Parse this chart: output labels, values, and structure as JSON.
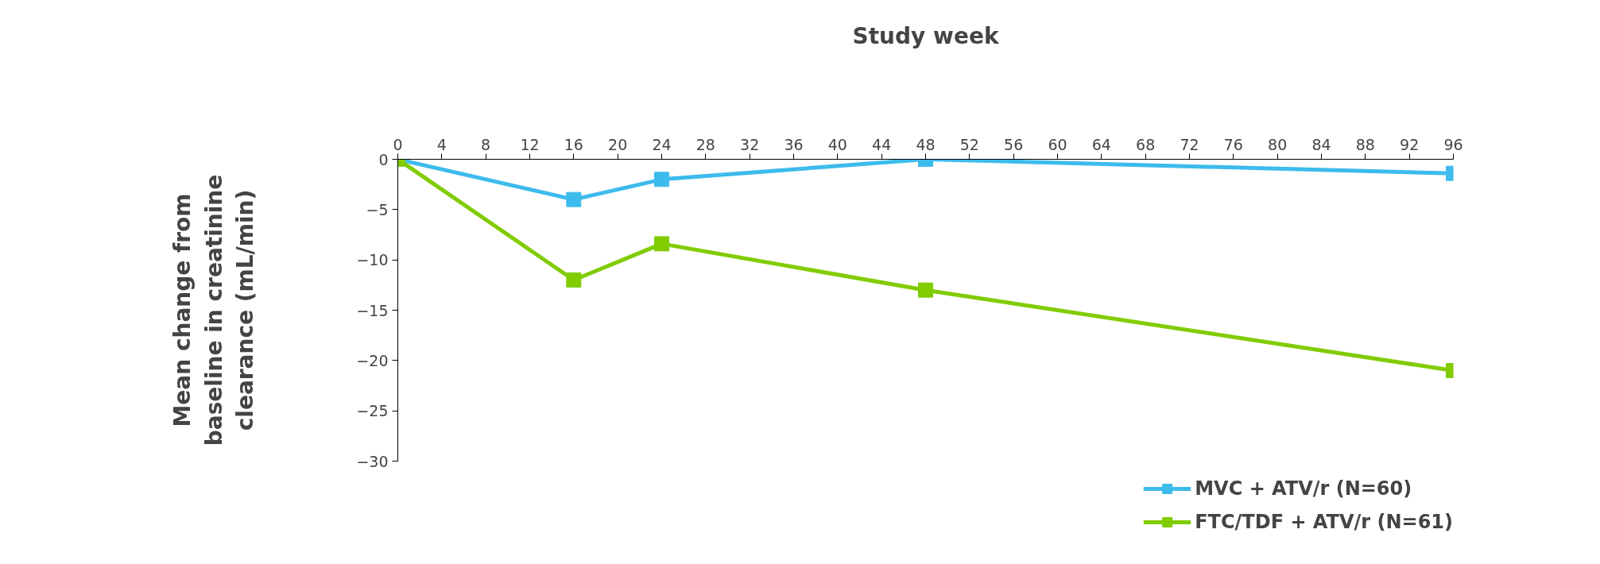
{
  "chart_data": {
    "type": "line",
    "xlabel": "Study week",
    "ylabel": "Mean change from baseline in creatinine clearance (mL/min)",
    "x": [
      0,
      16,
      24,
      48,
      96
    ],
    "series": [
      {
        "name": "MVC + ATV/r (N=60)",
        "color": "#3dbbec",
        "values": [
          0,
          -4,
          -2,
          0,
          -1.4
        ]
      },
      {
        "name": "FTC/TDF + ATV/r (N=61)",
        "color": "#80cc00",
        "values": [
          0,
          -12,
          -8.4,
          -13,
          -21
        ]
      }
    ],
    "xlim": [
      0,
      96
    ],
    "xticks": [
      0,
      4,
      8,
      12,
      16,
      20,
      24,
      28,
      32,
      36,
      40,
      44,
      48,
      52,
      56,
      60,
      64,
      68,
      72,
      76,
      80,
      84,
      88,
      92,
      96
    ],
    "ylim": [
      -30,
      0
    ],
    "yticks": [
      -30,
      -25,
      -20,
      -15,
      -10,
      -5,
      0
    ],
    "marker": "square",
    "line_style": "solid",
    "grid": false,
    "legend": "bottom right"
  }
}
